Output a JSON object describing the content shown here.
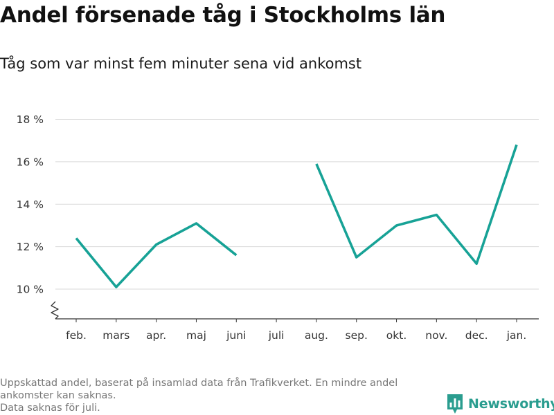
{
  "chart_data": {
    "type": "line",
    "title": "Andel försenade tåg i Stockholms län",
    "subtitle": "Tåg som var minst fem minuter sena vid ankomst",
    "xlabel": "",
    "ylabel": "",
    "categories": [
      "feb.",
      "mars",
      "apr.",
      "maj",
      "juni",
      "juli",
      "aug.",
      "sep.",
      "okt.",
      "nov.",
      "dec.",
      "jan."
    ],
    "series": [
      {
        "values": [
          12.4,
          10.1,
          12.1,
          13.1,
          11.6,
          null,
          15.9,
          11.5,
          13.0,
          13.5,
          11.2,
          16.8
        ]
      }
    ],
    "ylim": [
      8.6,
      18.8
    ],
    "yticks": [
      10,
      12,
      14,
      16,
      18
    ],
    "ytick_labels": [
      "10 %",
      "12 %",
      "14 %",
      "16 %",
      "18 %"
    ],
    "grid": true,
    "broken_axis": true,
    "line_color": "#17a296"
  },
  "footnote": {
    "lines": [
      "Uppskattad andel, baserat på insamlad data från Trafikverket. En mindre andel",
      "ankomster kan saknas.",
      "Data saknas för juli."
    ]
  },
  "brand": {
    "name": "Newsworthy",
    "icon": "bar-chart-logo-icon",
    "color": "#2a9d8f"
  }
}
